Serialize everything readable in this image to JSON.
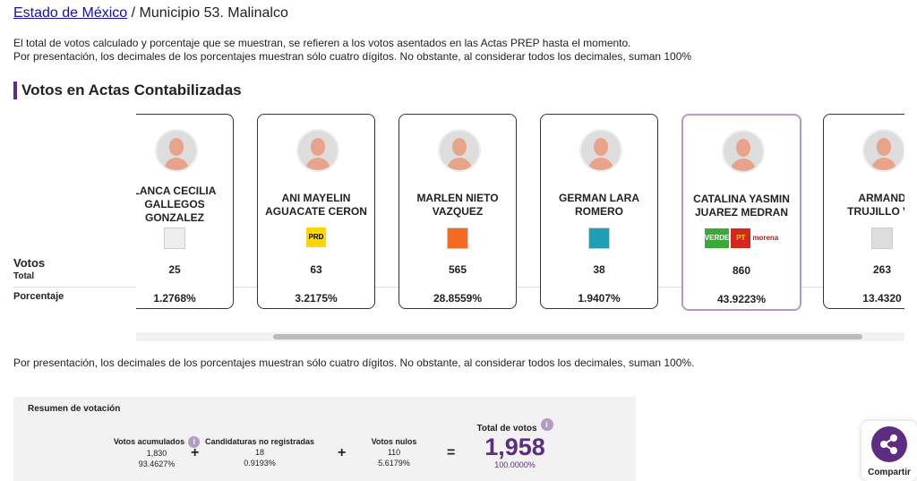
{
  "breadcrumb": {
    "link": "Estado de México",
    "separator": "/",
    "current": "Municipio 53. Malinalco"
  },
  "notes": [
    "El total de votos calculado y porcentaje que se muestran, se refieren a los votos asentados en las Actas PREP hasta el momento.",
    "Por presentación, los decimales de los porcentajes muestran sólo cuatro dígitos. No obstante, al considerar todos los decimales, suman 100%"
  ],
  "section_title": "Votos en Actas Contabilizadas",
  "row_labels": {
    "votes": "Votos",
    "votes_sub": "Total",
    "percent": "Porcentaje"
  },
  "candidates": [
    {
      "name": [
        "LANCA CECILIA",
        "GALLEGOS",
        "GONZALEZ"
      ],
      "party": [],
      "votes": "25",
      "percent": "1.2768%"
    },
    {
      "name": [
        "ANI MAYELIN",
        "AGUACATE CERON"
      ],
      "party": [
        "PRD"
      ],
      "votes": "63",
      "percent": "3.2175%"
    },
    {
      "name": [
        "MARLEN NIETO",
        "VAZQUEZ"
      ],
      "party": [],
      "votes": "565",
      "percent": "28.8559%"
    },
    {
      "name": [
        "GERMAN LARA",
        "ROMERO"
      ],
      "party": [],
      "votes": "38",
      "percent": "1.9407%"
    },
    {
      "name": [
        "CATALINA YASMIN",
        "JUAREZ MEDRAN"
      ],
      "party": [
        "VERDE",
        "PT",
        "morena"
      ],
      "votes": "860",
      "percent": "43.9223%"
    },
    {
      "name": [
        "ARMAND",
        "TRUJILLO VA"
      ],
      "party": [],
      "votes": "263",
      "percent": "13.4320"
    }
  ],
  "footnote": "Por presentación, los decimales de los porcentajes muestran sólo cuatro dígitos. No obstante, al considerar todos los decimales, suman 100%.",
  "summary": {
    "title": "Resumen de votación",
    "items": [
      {
        "label": "Votos acumulados",
        "info": "i",
        "count": "1,830",
        "percent": "93.4627%"
      },
      {
        "label": "Candidaturas no registradas",
        "count": "18",
        "percent": "0.9193%"
      },
      {
        "label": "Votos nulos",
        "count": "110",
        "percent": "5.6179%"
      }
    ],
    "operators": [
      "+",
      "+",
      "="
    ],
    "total": {
      "label": "Total de votos",
      "info": "i",
      "count": "1,958",
      "percent": "100.0000%"
    }
  },
  "share": "Compartir"
}
